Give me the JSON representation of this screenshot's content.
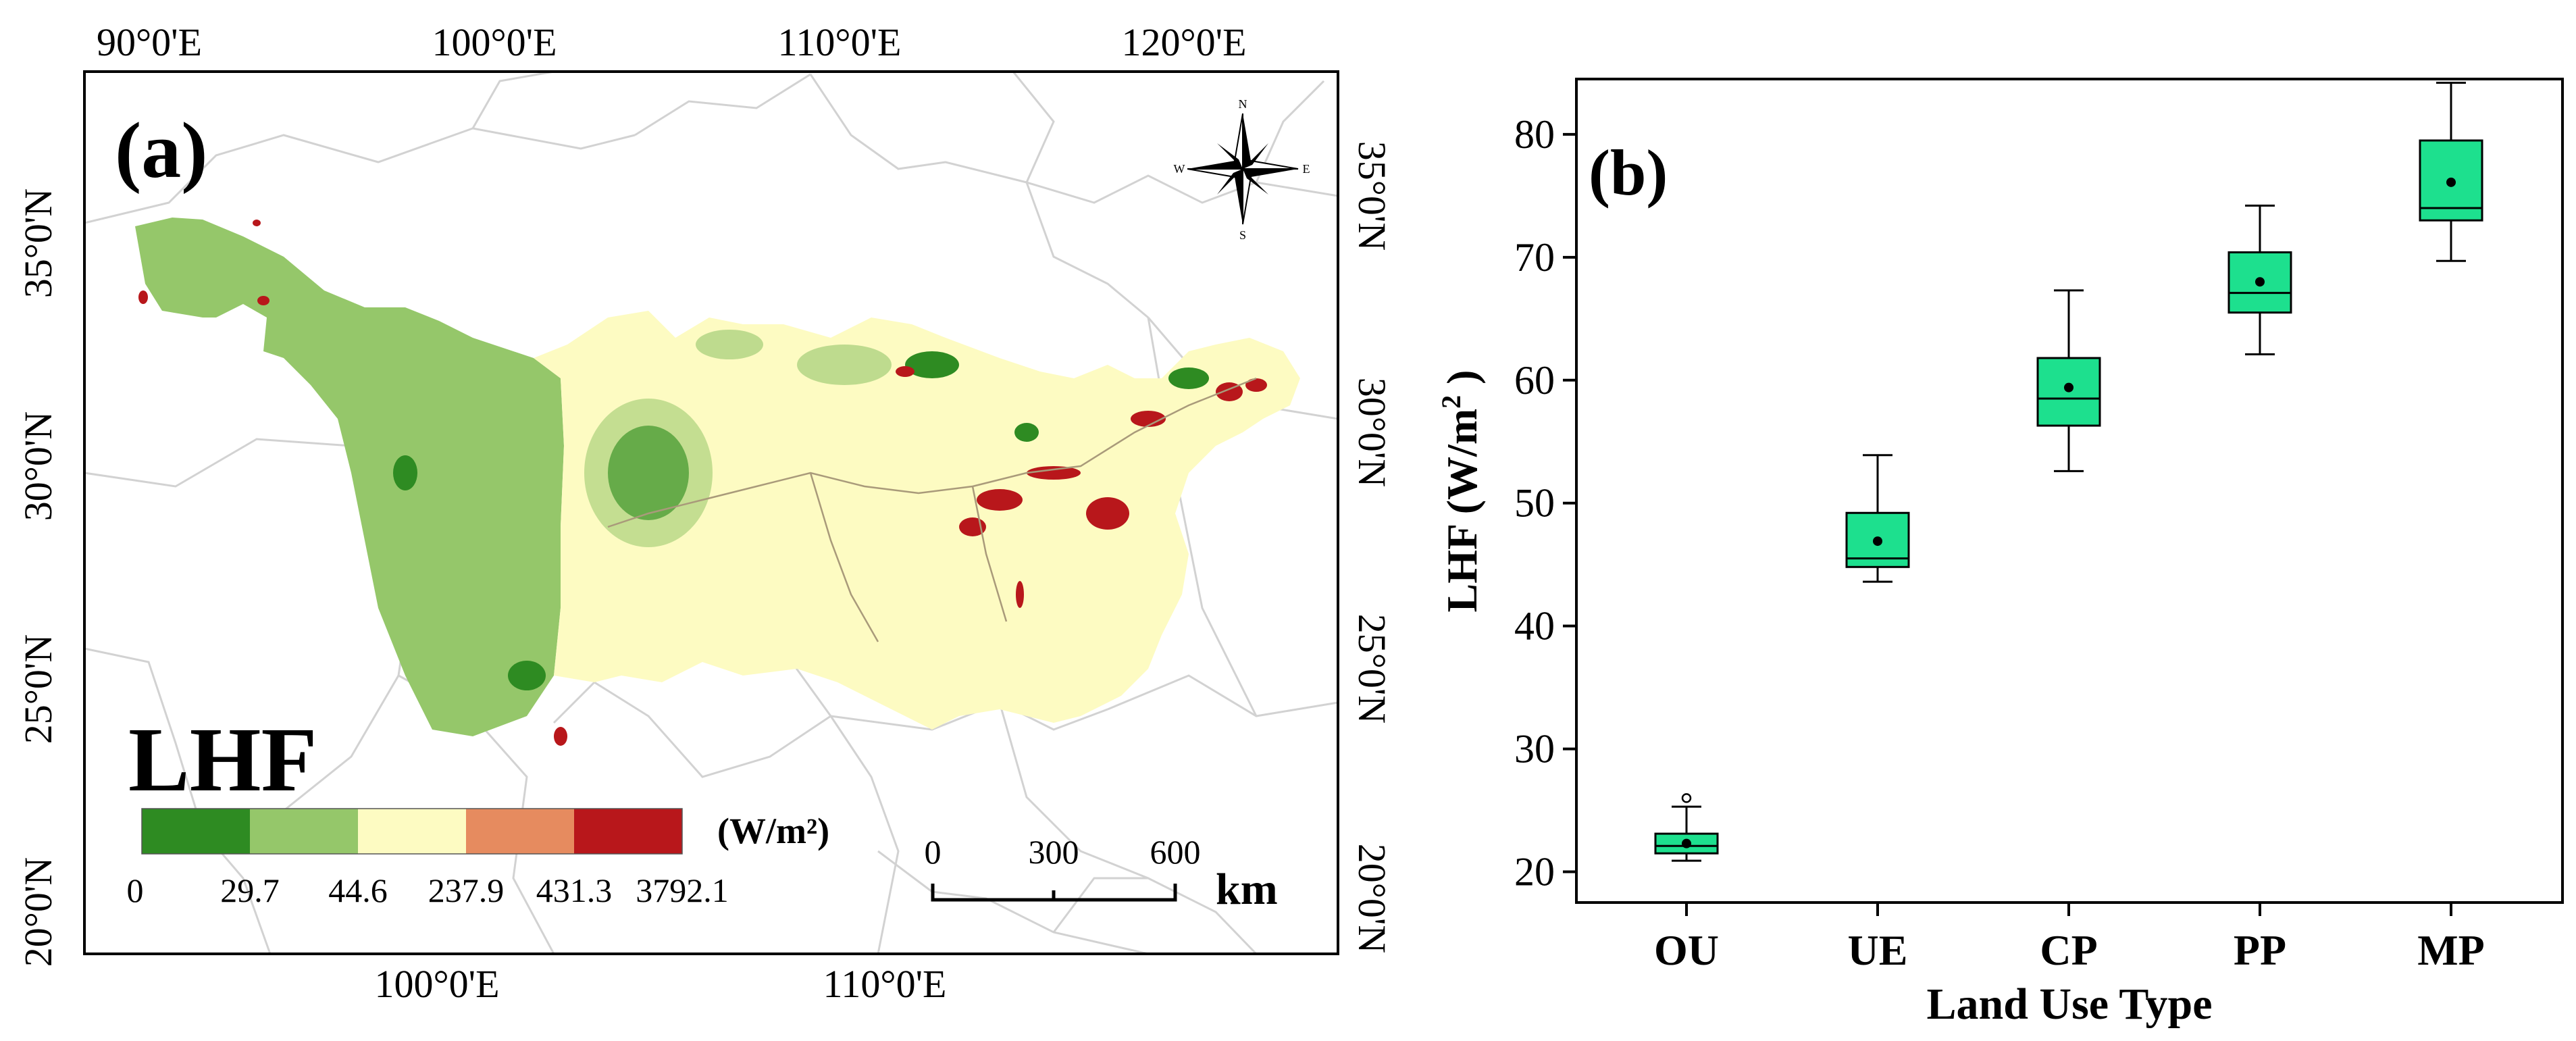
{
  "panel_a": {
    "label": "(a)",
    "variable": "LHF",
    "unit": "(W/m²)",
    "legend": {
      "colors": [
        "#2e8b22",
        "#95c76a",
        "#fdfbc2",
        "#e68b5f",
        "#b8171b"
      ],
      "breaks": [
        "0",
        "29.7",
        "44.6",
        "237.9",
        "431.3",
        "3792.1"
      ]
    },
    "scale_bar": {
      "ticks": [
        "0",
        "300",
        "600"
      ],
      "unit": "km"
    },
    "north_arrow": {
      "n": "N",
      "s": "S",
      "e": "E",
      "w": "W"
    },
    "top_lon_labels": [
      "90°0'E",
      "100°0'E",
      "110°0'E",
      "120°0'E"
    ],
    "bottom_lon_labels": [
      "100°0'E",
      "110°0'E"
    ],
    "left_lat_labels": [
      "35°0'N",
      "30°0'N",
      "25°0'N",
      "20°0'N"
    ],
    "right_lat_labels": [
      "35°0'N",
      "30°0'N",
      "25°0'N",
      "20°0'N"
    ]
  },
  "chart_data": {
    "type": "box",
    "label": "(b)",
    "xlabel": "Land Use Type",
    "ylabel": "LHF (W/m",
    "ylabel_sup": "2",
    "ylabel_close": " )",
    "ylim": [
      17.5,
      84.5
    ],
    "yticks": [
      20,
      30,
      40,
      50,
      60,
      70,
      80
    ],
    "categories": [
      "OU",
      "UE",
      "CP",
      "PP",
      "MP"
    ],
    "boxes": [
      {
        "category": "OU",
        "whislo": 20.9,
        "q1": 21.5,
        "median": 22.1,
        "q3": 23.1,
        "whishi": 25.3,
        "mean": 22.3,
        "outliers": [
          26.0
        ]
      },
      {
        "category": "UE",
        "whislo": 43.6,
        "q1": 44.8,
        "median": 45.5,
        "q3": 49.2,
        "whishi": 53.9,
        "mean": 46.9,
        "outliers": []
      },
      {
        "category": "CP",
        "whislo": 52.6,
        "q1": 56.3,
        "median": 58.5,
        "q3": 61.8,
        "whishi": 67.3,
        "mean": 59.4,
        "outliers": []
      },
      {
        "category": "PP",
        "whislo": 62.1,
        "q1": 65.5,
        "median": 67.1,
        "q3": 70.4,
        "whishi": 74.2,
        "mean": 68.0,
        "outliers": []
      },
      {
        "category": "MP",
        "whislo": 69.7,
        "q1": 73.0,
        "median": 74.0,
        "q3": 79.5,
        "whishi": 84.2,
        "mean": 76.1,
        "outliers": []
      }
    ],
    "box_color": "#1de08e"
  }
}
